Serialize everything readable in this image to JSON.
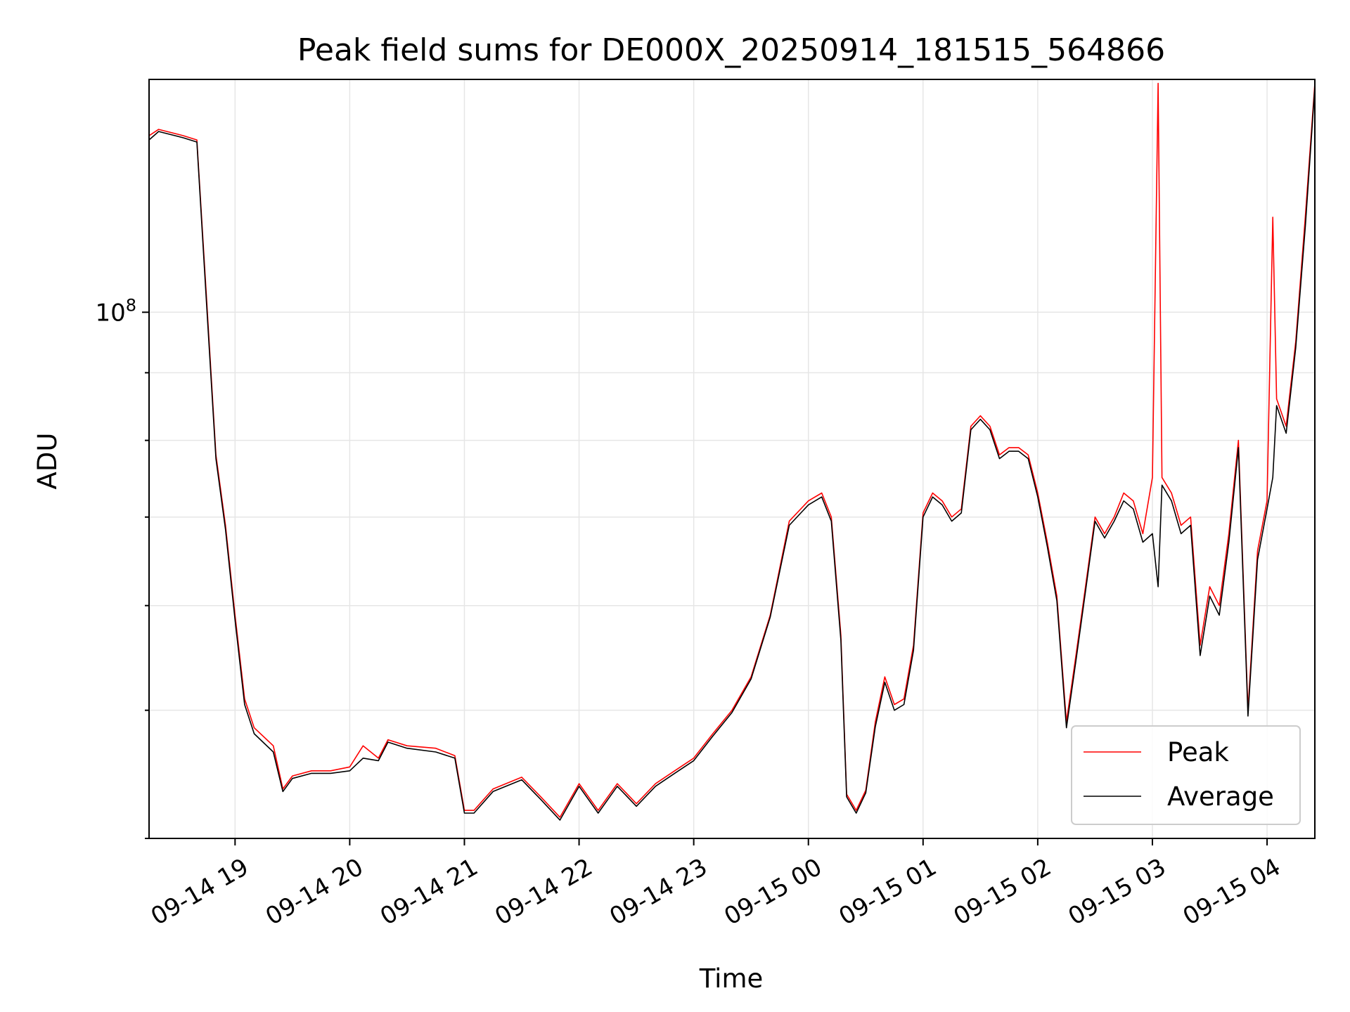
{
  "chart_data": {
    "type": "line",
    "title": "Peak field sums for DE000X_20250914_181515_564866",
    "xlabel": "Time",
    "ylabel": "ADU",
    "y_scale": "log",
    "ylim": [
      40000000,
      150000000
    ],
    "xlim": [
      "09-14 18:15",
      "09-15 04:25"
    ],
    "x_tick_labels": [
      "09-14 19",
      "09-14 20",
      "09-14 21",
      "09-14 22",
      "09-14 23",
      "09-15 00",
      "09-15 01",
      "09-15 02",
      "09-15 03",
      "09-15 04"
    ],
    "y_tick_labels": [
      {
        "base": "10",
        "exp": "8"
      }
    ],
    "grid": true,
    "legend_position": "lower right",
    "series": [
      {
        "name": "Peak",
        "color": "#ff0000",
        "x": [
          "09-14 18:15",
          "09-14 18:20",
          "09-14 18:33",
          "09-14 18:40",
          "09-14 18:45",
          "09-14 18:50",
          "09-14 18:55",
          "09-14 19:00",
          "09-14 19:05",
          "09-14 19:10",
          "09-14 19:20",
          "09-14 19:25",
          "09-14 19:30",
          "09-14 19:40",
          "09-14 19:50",
          "09-14 20:00",
          "09-14 20:07",
          "09-14 20:15",
          "09-14 20:20",
          "09-14 20:30",
          "09-14 20:45",
          "09-14 20:55",
          "09-14 21:00",
          "09-14 21:05",
          "09-14 21:15",
          "09-14 21:30",
          "09-14 21:40",
          "09-14 21:50",
          "09-14 22:00",
          "09-14 22:10",
          "09-14 22:20",
          "09-14 22:30",
          "09-14 22:40",
          "09-14 22:50",
          "09-14 23:00",
          "09-14 23:10",
          "09-14 23:20",
          "09-14 23:30",
          "09-14 23:40",
          "09-14 23:50",
          "09-15 00:00",
          "09-15 00:07",
          "09-15 00:12",
          "09-15 00:17",
          "09-15 00:20",
          "09-15 00:25",
          "09-15 00:30",
          "09-15 00:35",
          "09-15 00:40",
          "09-15 00:45",
          "09-15 00:50",
          "09-15 00:55",
          "09-15 01:00",
          "09-15 01:05",
          "09-15 01:10",
          "09-15 01:15",
          "09-15 01:20",
          "09-15 01:25",
          "09-15 01:30",
          "09-15 01:35",
          "09-15 01:40",
          "09-15 01:45",
          "09-15 01:50",
          "09-15 01:55",
          "09-15 02:00",
          "09-15 02:05",
          "09-15 02:10",
          "09-15 02:15",
          "09-15 02:20",
          "09-15 02:25",
          "09-15 02:30",
          "09-15 02:35",
          "09-15 02:40",
          "09-15 02:45",
          "09-15 02:50",
          "09-15 02:55",
          "09-15 03:00",
          "09-15 03:03",
          "09-15 03:05",
          "09-15 03:10",
          "09-15 03:15",
          "09-15 03:20",
          "09-15 03:25",
          "09-15 03:30",
          "09-15 03:35",
          "09-15 03:40",
          "09-15 03:45",
          "09-15 03:50",
          "09-15 03:55",
          "09-15 04:00",
          "09-15 04:03",
          "09-15 04:05",
          "09-15 04:10",
          "09-15 04:15",
          "09-15 04:20",
          "09-15 04:25"
        ],
        "values": [
          136000000,
          137500000,
          136000000,
          135000000,
          103000000,
          78000000,
          69000000,
          59000000,
          51000000,
          48500000,
          47000000,
          43600000,
          44600000,
          45000000,
          45000000,
          45300000,
          47000000,
          46000000,
          47500000,
          47000000,
          46800000,
          46200000,
          42000000,
          42000000,
          43600000,
          44500000,
          43000000,
          41500000,
          44000000,
          42000000,
          44000000,
          42500000,
          44000000,
          45000000,
          46000000,
          48000000,
          50000000,
          53000000,
          59000000,
          69500000,
          72000000,
          73000000,
          70000000,
          57000000,
          43200000,
          42000000,
          43500000,
          49000000,
          53000000,
          50500000,
          51000000,
          56000000,
          70500000,
          73000000,
          72000000,
          70000000,
          71000000,
          82000000,
          83500000,
          82000000,
          78000000,
          79000000,
          79000000,
          78000000,
          73000000,
          67000000,
          61000000,
          49000000,
          55000000,
          62000000,
          70000000,
          68000000,
          70000000,
          73000000,
          72000000,
          68000000,
          75000000,
          149000000,
          75000000,
          73000000,
          69000000,
          70000000,
          56000000,
          62000000,
          60000000,
          68000000,
          80000000,
          50000000,
          66000000,
          72000000,
          118000000,
          86000000,
          82000000,
          95000000,
          118000000,
          149000000
        ]
      },
      {
        "name": "Average",
        "color": "#000000",
        "x": [
          "09-14 18:15",
          "09-14 18:20",
          "09-14 18:33",
          "09-14 18:40",
          "09-14 18:45",
          "09-14 18:50",
          "09-14 18:55",
          "09-14 19:00",
          "09-14 19:05",
          "09-14 19:10",
          "09-14 19:20",
          "09-14 19:25",
          "09-14 19:30",
          "09-14 19:40",
          "09-14 19:50",
          "09-14 20:00",
          "09-14 20:07",
          "09-14 20:15",
          "09-14 20:20",
          "09-14 20:30",
          "09-14 20:45",
          "09-14 20:55",
          "09-14 21:00",
          "09-14 21:05",
          "09-14 21:15",
          "09-14 21:30",
          "09-14 21:40",
          "09-14 21:50",
          "09-14 22:00",
          "09-14 22:10",
          "09-14 22:20",
          "09-14 22:30",
          "09-14 22:40",
          "09-14 22:50",
          "09-14 23:00",
          "09-14 23:10",
          "09-14 23:20",
          "09-14 23:30",
          "09-14 23:40",
          "09-14 23:50",
          "09-15 00:00",
          "09-15 00:07",
          "09-15 00:12",
          "09-15 00:17",
          "09-15 00:20",
          "09-15 00:25",
          "09-15 00:30",
          "09-15 00:35",
          "09-15 00:40",
          "09-15 00:45",
          "09-15 00:50",
          "09-15 00:55",
          "09-15 01:00",
          "09-15 01:05",
          "09-15 01:10",
          "09-15 01:15",
          "09-15 01:20",
          "09-15 01:25",
          "09-15 01:30",
          "09-15 01:35",
          "09-15 01:40",
          "09-15 01:45",
          "09-15 01:50",
          "09-15 01:55",
          "09-15 02:00",
          "09-15 02:05",
          "09-15 02:10",
          "09-15 02:15",
          "09-15 02:20",
          "09-15 02:25",
          "09-15 02:30",
          "09-15 02:35",
          "09-15 02:40",
          "09-15 02:45",
          "09-15 02:50",
          "09-15 02:55",
          "09-15 03:00",
          "09-15 03:03",
          "09-15 03:05",
          "09-15 03:10",
          "09-15 03:15",
          "09-15 03:20",
          "09-15 03:25",
          "09-15 03:30",
          "09-15 03:35",
          "09-15 03:40",
          "09-15 03:45",
          "09-15 03:50",
          "09-15 03:55",
          "09-15 04:00",
          "09-15 04:03",
          "09-15 04:05",
          "09-15 04:10",
          "09-15 04:15",
          "09-15 04:20",
          "09-15 04:25"
        ],
        "values": [
          135000000,
          137000000,
          135500000,
          134500000,
          102000000,
          77500000,
          68500000,
          58500000,
          50500000,
          48000000,
          46500000,
          43400000,
          44400000,
          44800000,
          44800000,
          45000000,
          46000000,
          45800000,
          47300000,
          46800000,
          46500000,
          46000000,
          41800000,
          41800000,
          43400000,
          44300000,
          42800000,
          41300000,
          43800000,
          41800000,
          43800000,
          42300000,
          43800000,
          44800000,
          45800000,
          47800000,
          49800000,
          52800000,
          58800000,
          69000000,
          71500000,
          72500000,
          69500000,
          56500000,
          43000000,
          41800000,
          43300000,
          48600000,
          52500000,
          50000000,
          50500000,
          55500000,
          70000000,
          72500000,
          71500000,
          69500000,
          70500000,
          81500000,
          83000000,
          81500000,
          77500000,
          78500000,
          78500000,
          77500000,
          72500000,
          66500000,
          60500000,
          48500000,
          54500000,
          61500000,
          69500000,
          67500000,
          69500000,
          72000000,
          71000000,
          67000000,
          68000000,
          62000000,
          74000000,
          72000000,
          68000000,
          69000000,
          55000000,
          61000000,
          59000000,
          67000000,
          79000000,
          49500000,
          65000000,
          71000000,
          75000000,
          85000000,
          81000000,
          94000000,
          116000000,
          148000000
        ]
      }
    ]
  }
}
